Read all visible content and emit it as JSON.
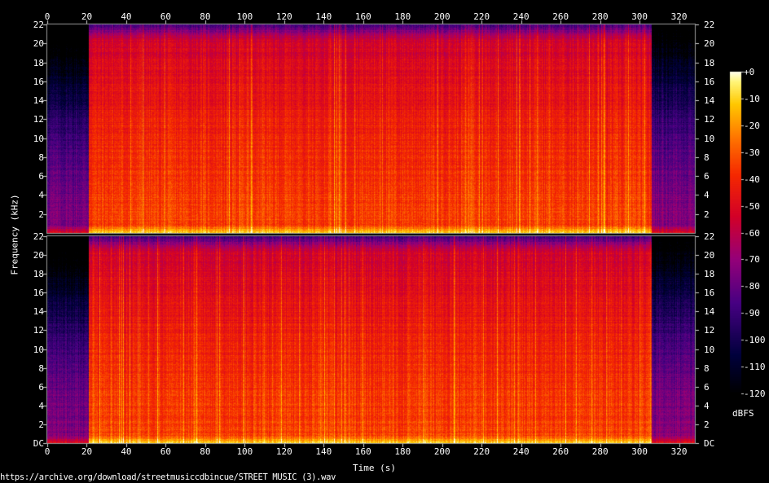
{
  "chart_data": {
    "type": "heatmap",
    "subtype": "spectrogram",
    "channels": 2,
    "xlabel": "Time (s)",
    "ylabel": "Frequency (kHz)",
    "x_ticks": [
      0,
      20,
      40,
      60,
      80,
      100,
      120,
      140,
      160,
      180,
      200,
      220,
      240,
      260,
      280,
      300,
      320
    ],
    "xlim": [
      0,
      328
    ],
    "y_ticks_left_top": [
      "2",
      "4",
      "6",
      "8",
      "10",
      "12",
      "14",
      "16",
      "18",
      "20",
      "22"
    ],
    "y_ticks_left_bottom": [
      "DC",
      "2",
      "4",
      "6",
      "8",
      "10",
      "12",
      "14",
      "16",
      "18",
      "20",
      "22"
    ],
    "y_ticks_right_top": [
      "2",
      "4",
      "6",
      "8",
      "10",
      "12",
      "14",
      "16",
      "18",
      "20",
      "22"
    ],
    "y_ticks_right_bottom": [
      "DC",
      "2",
      "4",
      "6",
      "8",
      "10",
      "12",
      "14",
      "16",
      "18",
      "20",
      "22"
    ],
    "ylim_khz": [
      0,
      22
    ],
    "colorbar": {
      "unit": "dBFS",
      "ticks": [
        "+0",
        "-10",
        "-20",
        "-30",
        "-40",
        "-50",
        "-60",
        "-70",
        "-80",
        "-90",
        "-100",
        "-110",
        "-120"
      ],
      "range_db": [
        -120,
        0
      ]
    },
    "segments": [
      {
        "start_s": 0,
        "end_s": 21,
        "level": "quiet intro, sparse energy"
      },
      {
        "start_s": 21,
        "end_s": 306,
        "level": "loud music, dense energy up to 22 kHz"
      },
      {
        "start_s": 306,
        "end_s": 328,
        "level": "fade-out, reduced high frequencies"
      }
    ]
  },
  "footer": {
    "source": "https://archive.org/download/streetmusiccdbincue/STREET MUSIC (3).wav"
  }
}
